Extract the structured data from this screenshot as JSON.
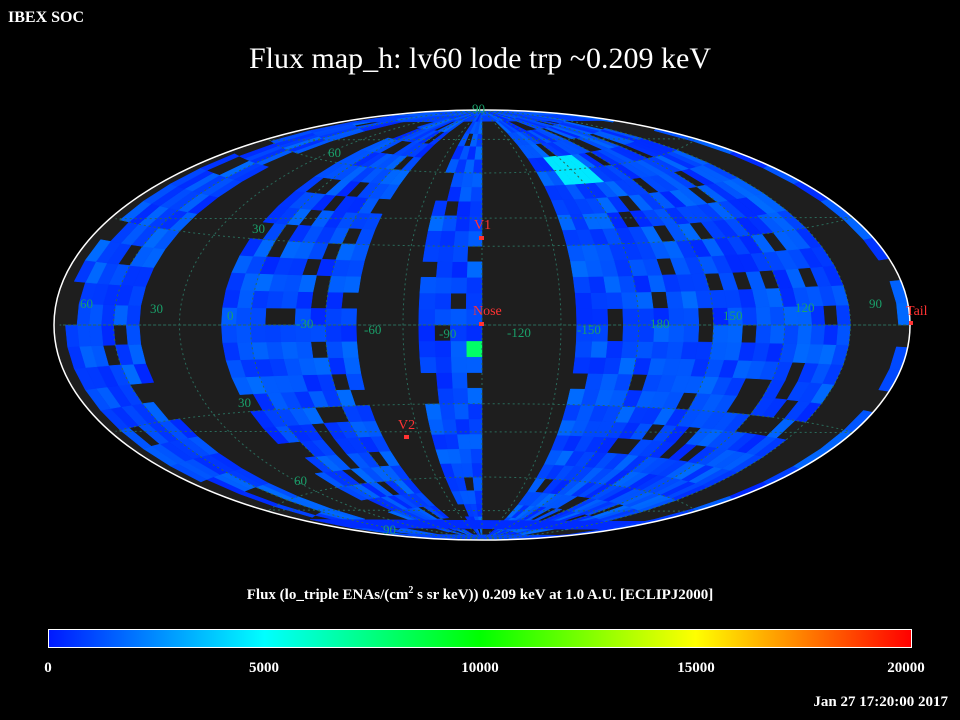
{
  "header": {
    "org_label": "IBEX SOC",
    "title": "Flux   map_h: lv60 lode trp ~0.209 keV"
  },
  "colorbar": {
    "label_main": "Flux (lo_triple ENAs/(cm",
    "label_sup": "2",
    "label_rest": " s sr keV))  0.209 keV at 1.0 A.U. [ECLIPJ2000]",
    "ticks": [
      "0",
      "5000",
      "10000",
      "15000",
      "20000"
    ],
    "colors": [
      "#0019ff",
      "#00ffff",
      "#00ff00",
      "#ffff00",
      "#ff0000"
    ]
  },
  "footer": {
    "timestamp": "Jan 27 17:20:00 2017"
  },
  "map_labels": {
    "lat_north": [
      "90",
      "60",
      "30"
    ],
    "lat_south": [
      "30",
      "60",
      "90"
    ],
    "lon": [
      "60",
      "30",
      "0",
      "-30",
      "-60",
      "-90",
      "-120",
      "-150",
      "180",
      "150",
      "120",
      "90"
    ],
    "markers": [
      {
        "name": "V1",
        "color": "#ff3333"
      },
      {
        "name": "Nose",
        "color": "#ff3333"
      },
      {
        "name": "V2",
        "color": "#ff3333"
      },
      {
        "name": "Tail",
        "color": "#ff3333"
      }
    ]
  },
  "chart_data": {
    "type": "heatmap",
    "projection": "aitoff-hammer",
    "title": "Flux   map_h: lv60 lode trp ~0.209 keV",
    "colorbar_range": [
      0,
      20000
    ],
    "colorbar_ticks": [
      0,
      5000,
      10000,
      15000,
      20000
    ],
    "typical_flux": 1500,
    "highlights": [
      {
        "region": "south of Nose",
        "flux": 8000
      },
      {
        "region": "north high latitude",
        "flux": 4500
      }
    ],
    "gap_color": "#1e1e1e"
  }
}
